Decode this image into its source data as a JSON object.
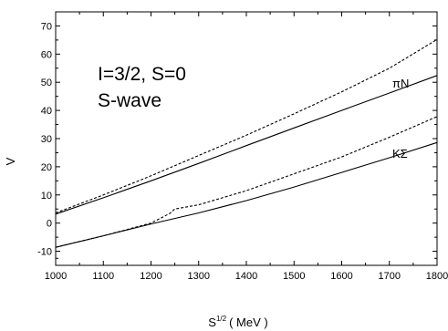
{
  "chart_data": {
    "type": "line",
    "title": "",
    "xlabel": "S^{1/2} ( MeV )",
    "xlabel_base": "S",
    "xlabel_sup": "1/2",
    "xlabel_unit": "( MeV )",
    "ylabel": "V",
    "xlim": [
      1000,
      1800
    ],
    "ylim": [
      -15,
      75
    ],
    "xticks": [
      1000,
      1100,
      1200,
      1300,
      1400,
      1500,
      1600,
      1700,
      1800
    ],
    "yticks": [
      -10,
      0,
      10,
      20,
      30,
      40,
      50,
      60,
      70
    ],
    "grid": false,
    "annotations": {
      "line1": "I=3/2, S=0",
      "line2": "S-wave",
      "pin": "πN",
      "ksigma": "KΣ"
    },
    "series": [
      {
        "style": "solid",
        "x": [
          1000,
          1100,
          1200,
          1300,
          1400,
          1500,
          1600,
          1700,
          1800
        ],
        "y": [
          3.2,
          9.0,
          15.0,
          21.2,
          27.5,
          33.8,
          40.0,
          46.2,
          52.4
        ]
      },
      {
        "style": "dashed",
        "x": [
          1000,
          1100,
          1200,
          1300,
          1400,
          1500,
          1600,
          1700,
          1800
        ],
        "y": [
          3.6,
          10.0,
          16.8,
          24.0,
          31.2,
          38.8,
          46.6,
          55.0,
          65.2
        ]
      },
      {
        "style": "solid",
        "x": [
          1000,
          1100,
          1200,
          1300,
          1400,
          1500,
          1600,
          1700,
          1800
        ],
        "y": [
          -8.6,
          -4.5,
          -0.3,
          3.6,
          8.0,
          12.8,
          18.0,
          23.2,
          28.6
        ]
      },
      {
        "style": "dashed",
        "x": [
          1000,
          1100,
          1200,
          1240,
          1250,
          1300,
          1400,
          1500,
          1600,
          1700,
          1800
        ],
        "y": [
          -8.6,
          -4.5,
          0.0,
          3.5,
          5.0,
          6.5,
          11.5,
          17.5,
          23.5,
          30.5,
          37.8
        ]
      }
    ]
  }
}
